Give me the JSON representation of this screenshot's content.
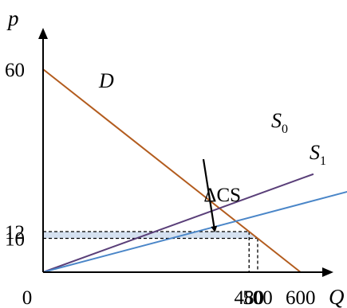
{
  "chart_data": {
    "type": "line",
    "title": "",
    "xlabel": "Q",
    "ylabel": "p",
    "origin_label": "0",
    "xlim": [
      0,
      630
    ],
    "ylim": [
      0,
      72
    ],
    "x_ticks": [
      {
        "value": 480,
        "label": "480"
      },
      {
        "value": 500,
        "label": "500"
      },
      {
        "value": 600,
        "label": "600"
      }
    ],
    "y_ticks": [
      {
        "value": 60,
        "label": "60"
      },
      {
        "value": 12,
        "label": "12"
      },
      {
        "value": 10,
        "label": "10"
      }
    ],
    "series": [
      {
        "name": "D",
        "points": [
          [
            0,
            60
          ],
          [
            600,
            0
          ]
        ],
        "color": "#b35c1e"
      },
      {
        "name": "S0",
        "label_main": "S",
        "label_sub": "0",
        "points": [
          [
            0,
            0
          ],
          [
            630,
            29
          ]
        ],
        "color": "#5a3f79"
      },
      {
        "name": "S1",
        "label_main": "S",
        "label_sub": "1",
        "points": [
          [
            0,
            0
          ],
          [
            760,
            25.5
          ]
        ],
        "color": "#4a86c8"
      }
    ],
    "shaded_region": {
      "label": "ΔCS",
      "color": "#d5e1f0",
      "polygon": [
        [
          0,
          12
        ],
        [
          480,
          12
        ],
        [
          500,
          10
        ],
        [
          0,
          10
        ]
      ]
    },
    "reference_lines": [
      {
        "from": [
          0,
          12
        ],
        "to": [
          480,
          12
        ]
      },
      {
        "from": [
          480,
          12
        ],
        "to": [
          480,
          0
        ]
      },
      {
        "from": [
          0,
          10
        ],
        "to": [
          500,
          10
        ]
      },
      {
        "from": [
          500,
          10
        ],
        "to": [
          500,
          0
        ]
      }
    ],
    "annotation": {
      "text": "ΔCS",
      "text_at": [
        445,
        21
      ],
      "arrow_to": [
        400,
        12.2
      ]
    }
  }
}
